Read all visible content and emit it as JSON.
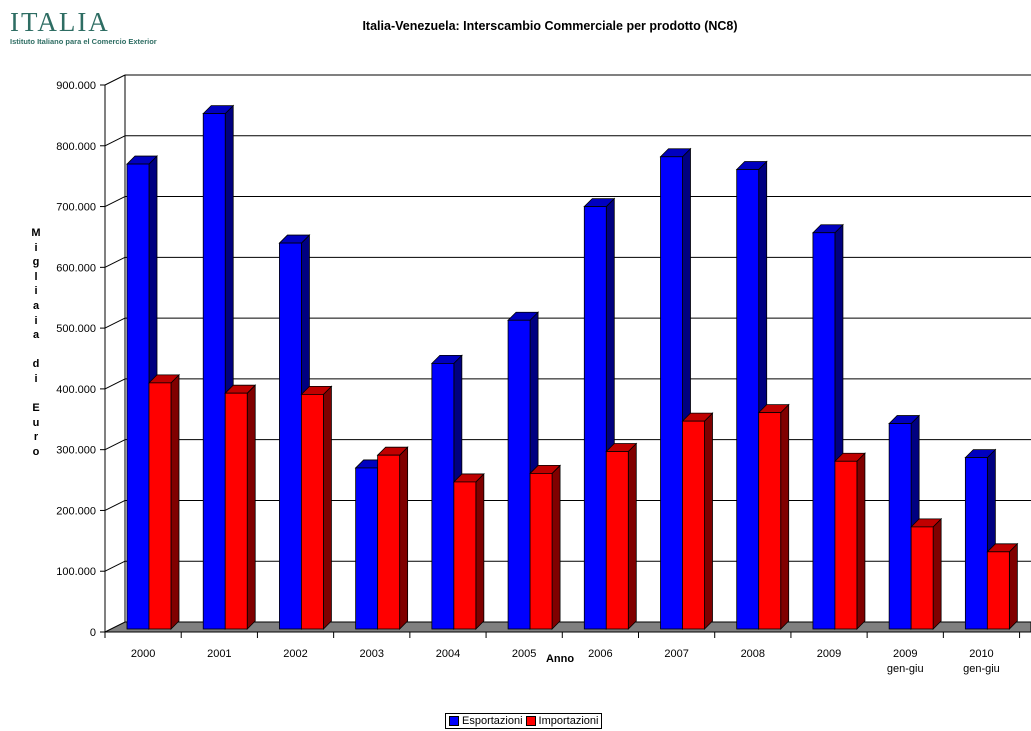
{
  "logo": {
    "name": "ITALIA",
    "subtitle": "Istituto Italiano para el Comercio Exterior"
  },
  "chart_data": {
    "type": "bar",
    "title": "Italia-Venezuela: Interscambio Commerciale per prodotto (NC8)",
    "xlabel": "Anno",
    "ylabel": "Migliaia di Euro",
    "ylim": [
      0,
      900000
    ],
    "yticks": [
      "0",
      "100.000",
      "200.000",
      "300.000",
      "400.000",
      "500.000",
      "600.000",
      "700.000",
      "800.000",
      "900.000"
    ],
    "grid": true,
    "legend_position": "bottom",
    "categories": [
      [
        "2000"
      ],
      [
        "2001"
      ],
      [
        "2002"
      ],
      [
        "2003"
      ],
      [
        "2004"
      ],
      [
        "2005"
      ],
      [
        "2006"
      ],
      [
        "2007"
      ],
      [
        "2008"
      ],
      [
        "2009"
      ],
      [
        "2009",
        "gen-giu"
      ],
      [
        "2010",
        "gen-giu"
      ]
    ],
    "series": [
      {
        "name": "Esportazioni",
        "color": "#0000ff",
        "values": [
          765000,
          848000,
          635000,
          265000,
          437000,
          508000,
          695000,
          777000,
          756000,
          652000,
          338000,
          282000
        ]
      },
      {
        "name": "Importazioni",
        "color": "#ff0000",
        "values": [
          405000,
          388000,
          386000,
          286000,
          242000,
          256000,
          292000,
          342000,
          356000,
          276000,
          168000,
          127000
        ]
      }
    ]
  }
}
